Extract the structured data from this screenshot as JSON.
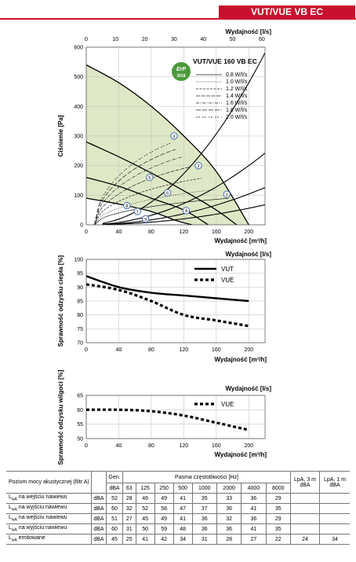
{
  "header": {
    "title": "VUT/VUE VB EC"
  },
  "chart_data": [
    {
      "type": "line",
      "title": "VUT/VUE 160 VB EC",
      "badge": {
        "top": "ErP",
        "bottom": "2018"
      },
      "xlabel": "Wydajność [m³/h]",
      "x2label": "Wydajność [l/s]",
      "ylabel": "Ciśnienie [Pa]",
      "xlim": [
        0,
        220
      ],
      "x_ticks": [
        0,
        40,
        80,
        120,
        160,
        200
      ],
      "x2_ticks": [
        0,
        10,
        20,
        30,
        40,
        50,
        60
      ],
      "ylim": [
        0,
        600
      ],
      "y_ticks": [
        0,
        100,
        200,
        300,
        400,
        500,
        600
      ],
      "legend": [
        "0.8 W/l/s",
        "1.0 W/l/s",
        "1.2 W/l/s",
        "1.4 W/l/s",
        "1.6 W/l/s",
        "1.8 W/l/s",
        "2.0 W/l/s"
      ],
      "series": [
        {
          "x": [
            0,
            40,
            80,
            120,
            160,
            200
          ],
          "y": [
            540,
            480,
            400,
            300,
            180,
            0
          ]
        },
        {
          "x": [
            0,
            40,
            80,
            120,
            160,
            185
          ],
          "y": [
            280,
            230,
            175,
            115,
            50,
            0
          ]
        },
        {
          "x": [
            0,
            40,
            80,
            120,
            150
          ],
          "y": [
            160,
            130,
            90,
            50,
            0
          ]
        },
        {
          "x": [
            0,
            40,
            80,
            110,
            130
          ],
          "y": [
            90,
            70,
            45,
            15,
            0
          ]
        }
      ],
      "points": [
        {
          "label": "1",
          "x": 173,
          "y": 103
        },
        {
          "label": "2",
          "x": 138,
          "y": 200
        },
        {
          "label": "3",
          "x": 108,
          "y": 300
        },
        {
          "label": "4",
          "x": 123,
          "y": 48
        },
        {
          "label": "5",
          "x": 78,
          "y": 160
        },
        {
          "label": "6",
          "x": 100,
          "y": 108
        },
        {
          "label": "7",
          "x": 63,
          "y": 45
        },
        {
          "label": "8",
          "x": 50,
          "y": 65
        },
        {
          "label": "9",
          "x": 73,
          "y": 20
        }
      ]
    },
    {
      "type": "line",
      "xlabel": "Wydajność [m³/h]",
      "x2label": "Wydajność [l/s]",
      "ylabel": "Sprawność odzysku ciepła [%]",
      "xlim": [
        0,
        220
      ],
      "x_ticks": [
        0,
        40,
        80,
        120,
        160,
        200
      ],
      "ylim": [
        70,
        100
      ],
      "y_ticks": [
        70,
        75,
        80,
        85,
        90,
        95,
        100
      ],
      "series": [
        {
          "name": "VUT",
          "x": [
            0,
            40,
            80,
            120,
            160,
            200
          ],
          "y": [
            94,
            90,
            88,
            87,
            86,
            85
          ]
        },
        {
          "name": "VUE",
          "x": [
            0,
            40,
            80,
            120,
            160,
            200
          ],
          "y": [
            91,
            89,
            85,
            80,
            78,
            76
          ]
        }
      ]
    },
    {
      "type": "line",
      "xlabel": "Wydajność [m³/h]",
      "x2label": "Wydajność [l/s]",
      "ylabel": "Sprawność odzysku wilgoci [%]",
      "xlim": [
        0,
        220
      ],
      "x_ticks": [
        0,
        40,
        80,
        120,
        160,
        200
      ],
      "ylim": [
        50,
        65
      ],
      "y_ticks": [
        50,
        55,
        60,
        65
      ],
      "series": [
        {
          "name": "VUE",
          "x": [
            0,
            40,
            80,
            120,
            160,
            200
          ],
          "y": [
            60,
            60,
            59.5,
            58,
            55.5,
            53
          ]
        }
      ]
    }
  ],
  "noise_table": {
    "title": "Poziom mocy akustycznej (filtr A)",
    "gen_label": "Gen.",
    "unit_label": "dBA",
    "bands_label": "Pasma częstotliwości [Hz]",
    "bands": [
      "63",
      "125",
      "250",
      "500",
      "1000",
      "2000",
      "4000",
      "8000"
    ],
    "lpa3_label": "LpA, 3 m dBA",
    "lpa1_label": "LpA, 1 m dBA",
    "rows": [
      {
        "prefix": "L",
        "sub": "wA",
        "label": " na wejściu nawiewu",
        "unit": "dBA",
        "gen": "52",
        "values": [
          "28",
          "46",
          "49",
          "41",
          "35",
          "33",
          "36",
          "29"
        ],
        "lpa3": "",
        "lpa1": ""
      },
      {
        "prefix": "L",
        "sub": "wA",
        "label": " na wyjściu nawiewu",
        "unit": "dBA",
        "gen": "60",
        "values": [
          "32",
          "52",
          "58",
          "47",
          "37",
          "36",
          "41",
          "35"
        ],
        "lpa3": "",
        "lpa1": ""
      },
      {
        "prefix": "L",
        "sub": "wA",
        "label": " na wejściu nawiewu",
        "unit": "dBA",
        "gen": "51",
        "values": [
          "27",
          "45",
          "49",
          "41",
          "36",
          "32",
          "36",
          "29"
        ],
        "lpa3": "",
        "lpa1": ""
      },
      {
        "prefix": "L",
        "sub": "wA",
        "label": " na wyjściu nawiewu",
        "unit": "dBA",
        "gen": "60",
        "values": [
          "31",
          "50",
          "59",
          "48",
          "36",
          "36",
          "41",
          "35"
        ],
        "lpa3": "",
        "lpa1": ""
      },
      {
        "prefix": "L",
        "sub": "wA",
        "label": " emitowane",
        "unit": "dBA",
        "gen": "45",
        "values": [
          "25",
          "41",
          "42",
          "34",
          "31",
          "28",
          "27",
          "22"
        ],
        "lpa3": "24",
        "lpa1": "34"
      }
    ]
  }
}
